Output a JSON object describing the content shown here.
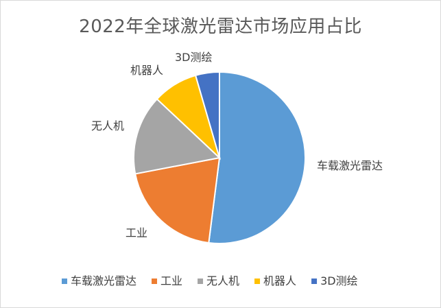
{
  "chart_data": {
    "type": "pie",
    "title": "2022年全球激光雷达市场应用占比",
    "categories": [
      "车载激光雷达",
      "工业",
      "无人机",
      "机器人",
      "3D测绘"
    ],
    "values": [
      52,
      20,
      15,
      8.5,
      4.5
    ],
    "colors": [
      "#5b9bd5",
      "#ed7d31",
      "#a5a5a5",
      "#ffc000",
      "#4472c4"
    ],
    "legend": "bottom",
    "slice_border_color": "#ffffff"
  }
}
